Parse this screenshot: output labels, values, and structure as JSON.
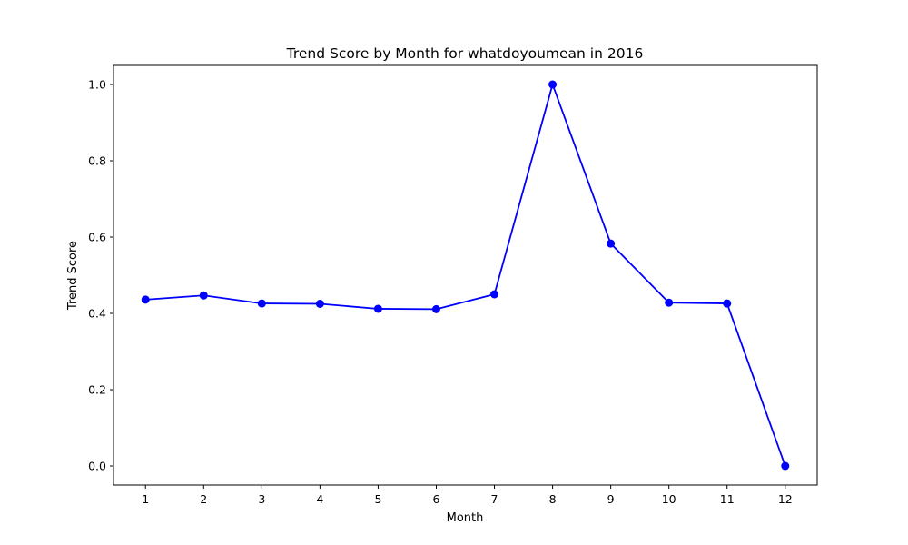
{
  "chart_data": {
    "type": "line",
    "title": "Trend Score by Month for whatdoyoumean in 2016",
    "xlabel": "Month",
    "ylabel": "Trend Score",
    "x": [
      1,
      2,
      3,
      4,
      5,
      6,
      7,
      8,
      9,
      10,
      11,
      12
    ],
    "series": [
      {
        "name": "Trend Score",
        "values": [
          0.436,
          0.447,
          0.426,
          0.425,
          0.412,
          0.411,
          0.45,
          1.0,
          0.583,
          0.428,
          0.426,
          0.0
        ]
      }
    ],
    "xlim": [
      0.45,
      12.55
    ],
    "ylim": [
      -0.05,
      1.05
    ],
    "xticks": [
      1,
      2,
      3,
      4,
      5,
      6,
      7,
      8,
      9,
      10,
      11,
      12
    ],
    "xtick_labels": [
      "1",
      "2",
      "3",
      "4",
      "5",
      "6",
      "7",
      "8",
      "9",
      "10",
      "11",
      "12"
    ],
    "yticks": [
      0.0,
      0.2,
      0.4,
      0.6,
      0.8,
      1.0
    ],
    "ytick_labels": [
      "0.0",
      "0.2",
      "0.4",
      "0.6",
      "0.8",
      "1.0"
    ],
    "grid": false,
    "legend": "none",
    "color": "#0000ff",
    "marker": "circle"
  }
}
